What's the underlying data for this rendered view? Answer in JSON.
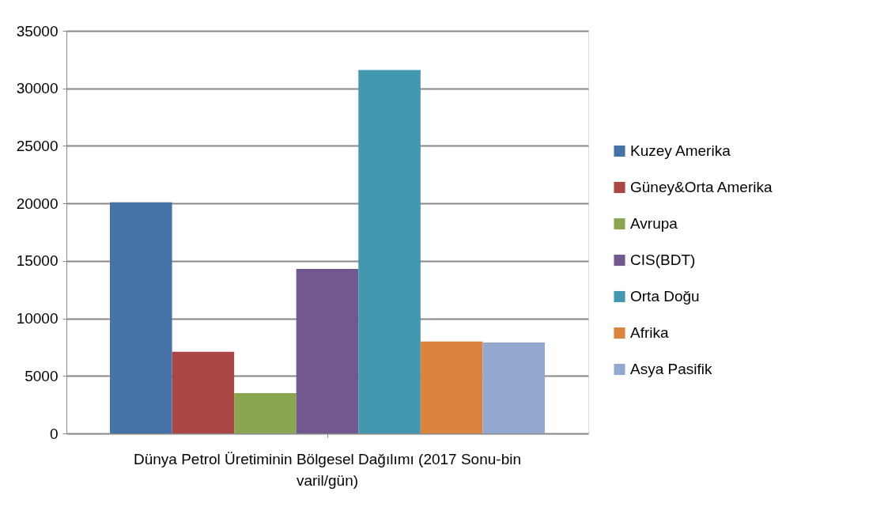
{
  "chart_data": {
    "type": "bar",
    "xlabel": "Dünya Petrol Üretiminin Bölgesel Dağılımı (2017 Sonu-bin varil/gün)",
    "categories": [
      null
    ],
    "series": [
      {
        "name": "Kuzey Amerika",
        "color": "#4572a7",
        "values": [
          20100
        ]
      },
      {
        "name": "Güney&Orta Amerika",
        "color": "#aa4643",
        "values": [
          7100
        ]
      },
      {
        "name": "Avrupa",
        "color": "#89a54e",
        "values": [
          3500
        ]
      },
      {
        "name": "CIS(BDT)",
        "color": "#71588f",
        "values": [
          14300
        ]
      },
      {
        "name": "Orta Doğu",
        "color": "#4198af",
        "values": [
          31600
        ]
      },
      {
        "name": "Afrika",
        "color": "#db843d",
        "values": [
          8000
        ]
      },
      {
        "name": "Asya Pasifik",
        "color": "#93a9cf",
        "values": [
          7900
        ]
      }
    ],
    "ylim": [
      0,
      35000
    ],
    "yticks": [
      0,
      5000,
      10000,
      15000,
      20000,
      25000,
      30000,
      35000
    ],
    "grid": "y",
    "legend": "right"
  }
}
